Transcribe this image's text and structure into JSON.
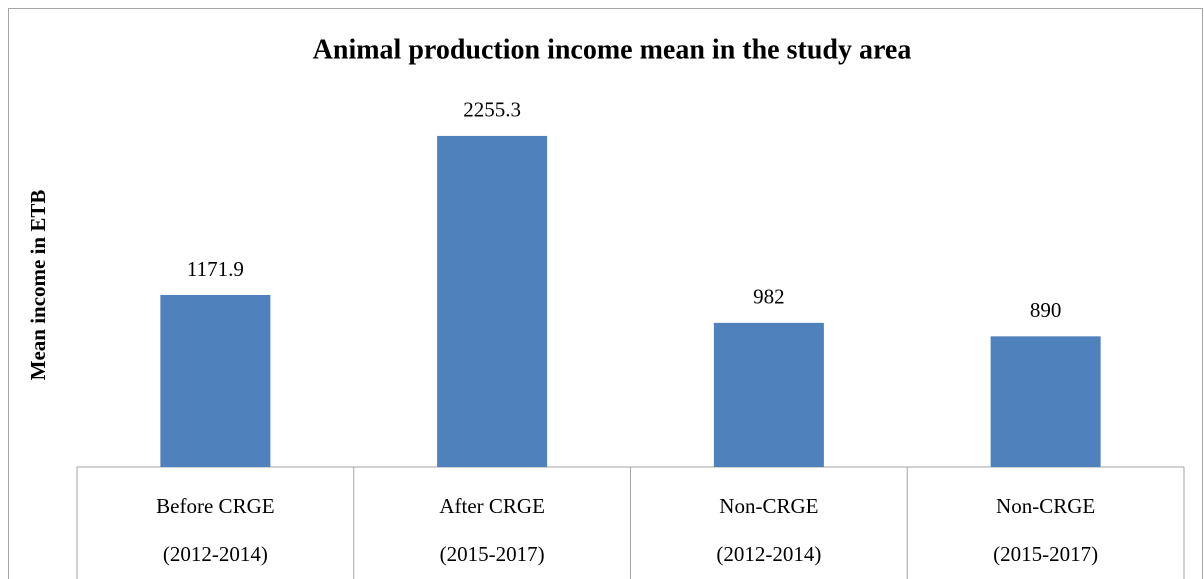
{
  "chart_data": {
    "type": "bar",
    "title": "Animal production income mean in the study area",
    "y_label": "Mean income in ETB",
    "categories": [
      [
        "Before CRGE",
        "(2012-2014)"
      ],
      [
        "After CRGE",
        "(2015-2017)"
      ],
      [
        "Non-CRGE",
        "(2012-2014)"
      ],
      [
        "Non-CRGE",
        "(2015-2017)"
      ]
    ],
    "values": [
      1171.9,
      2255.3,
      982,
      890
    ],
    "color": "#4f81bd",
    "ylim": [
      0,
      2500
    ]
  }
}
